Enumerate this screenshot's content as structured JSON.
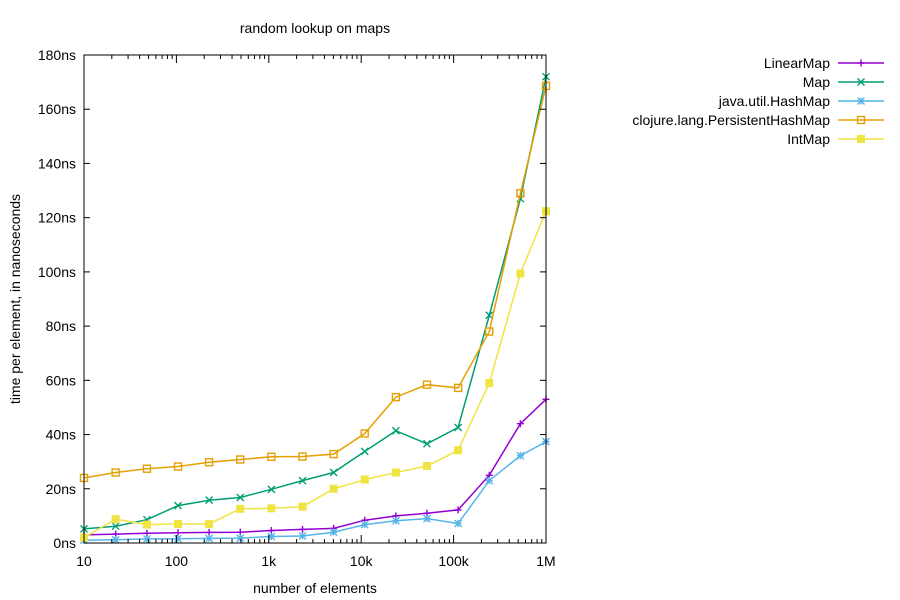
{
  "chart_data": {
    "type": "line",
    "title": "random lookup on maps",
    "xlabel": "number of elements",
    "ylabel": "time per element, in nanoseconds",
    "x_scale": "log10",
    "xlim": [
      10,
      1000000
    ],
    "ylim": [
      0,
      180
    ],
    "grid": false,
    "legend_position": "outside-right-top",
    "x_ticks": [
      {
        "value": 10,
        "label": "10"
      },
      {
        "value": 100,
        "label": "100"
      },
      {
        "value": 1000,
        "label": "1k"
      },
      {
        "value": 10000,
        "label": "10k"
      },
      {
        "value": 100000,
        "label": "100k"
      },
      {
        "value": 1000000,
        "label": "1M"
      }
    ],
    "y_ticks": [
      {
        "value": 0,
        "label": "0ns"
      },
      {
        "value": 20,
        "label": "20ns"
      },
      {
        "value": 40,
        "label": "40ns"
      },
      {
        "value": 60,
        "label": "60ns"
      },
      {
        "value": 80,
        "label": "80ns"
      },
      {
        "value": 100,
        "label": "100ns"
      },
      {
        "value": 120,
        "label": "120ns"
      },
      {
        "value": 140,
        "label": "140ns"
      },
      {
        "value": 160,
        "label": "160ns"
      },
      {
        "value": 180,
        "label": "180ns"
      }
    ],
    "x": [
      10,
      22,
      48,
      104,
      226,
      491,
      1066,
      2316,
      5030,
      10925,
      23729,
      51540,
      111947,
      243156,
      528142,
      1000000
    ],
    "series": [
      {
        "name": "LinearMap",
        "color": "#9400d3",
        "marker": "plus",
        "values": [
          3,
          3.3,
          3.6,
          3.8,
          3.9,
          4,
          4.6,
          5,
          5.4,
          8.4,
          10,
          11,
          12.2,
          25,
          44,
          53
        ]
      },
      {
        "name": "Map",
        "color": "#009e73",
        "marker": "cross",
        "values": [
          5.2,
          6.2,
          8.6,
          13.8,
          15.8,
          16.8,
          19.8,
          23,
          26,
          33.8,
          41.4,
          36.6,
          42.6,
          84,
          127,
          172
        ]
      },
      {
        "name": "java.util.HashMap",
        "color": "#56b4e9",
        "marker": "star",
        "values": [
          1,
          1.2,
          1.5,
          1.6,
          1.7,
          1.8,
          2.4,
          2.6,
          4,
          6.8,
          8.2,
          9,
          7.2,
          23,
          32.2,
          37.4
        ]
      },
      {
        "name": "clojure.lang.PersistentHashMap",
        "color": "#e69f00",
        "marker": "open-square",
        "values": [
          24,
          26,
          27.4,
          28.2,
          29.8,
          30.8,
          31.8,
          31.9,
          32.8,
          40.4,
          53.8,
          58.4,
          57.2,
          78,
          129,
          168.6
        ]
      },
      {
        "name": "IntMap",
        "color": "#f0e442",
        "marker": "filled-square",
        "values": [
          2,
          8.8,
          6.8,
          7,
          7,
          12.6,
          12.8,
          13.4,
          20,
          23.4,
          26,
          28.4,
          34.2,
          59,
          99.4,
          122.4
        ]
      }
    ]
  }
}
